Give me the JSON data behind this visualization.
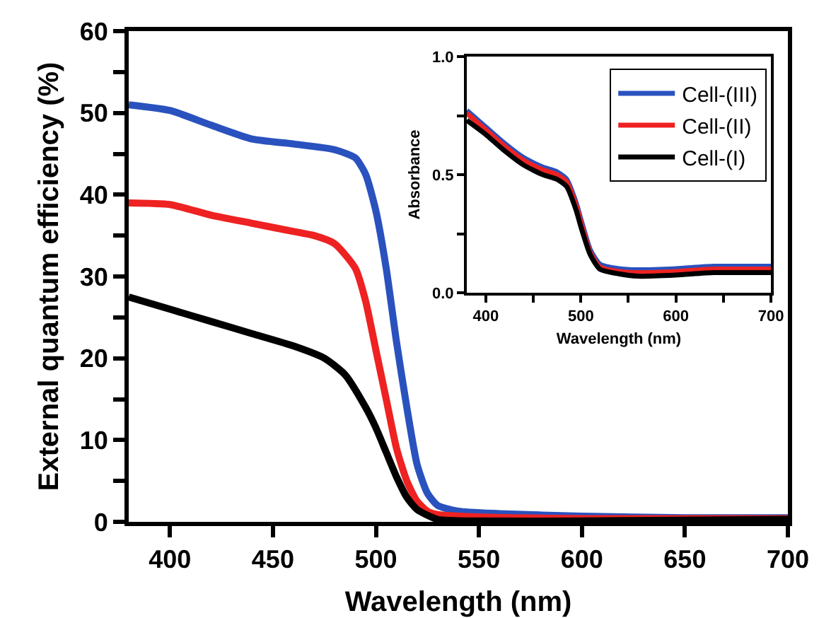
{
  "chart_data": [
    {
      "type": "line",
      "xlabel": "Wavelength (nm)",
      "ylabel": "External quantum efficiency (%)",
      "xlim": [
        380,
        700
      ],
      "ylim": [
        0,
        60
      ],
      "xticks": [
        400,
        450,
        500,
        550,
        600,
        650,
        700
      ],
      "yticks": [
        0,
        {
          "value": 5,
          "label": null
        },
        10,
        {
          "value": 15,
          "label": null
        },
        20,
        {
          "value": 25,
          "label": null
        },
        30,
        {
          "value": 35,
          "label": null
        },
        40,
        {
          "value": 45,
          "label": null
        },
        50,
        {
          "value": 55,
          "label": null
        },
        60
      ],
      "marker": "none",
      "line_style": "solid",
      "series": [
        {
          "color": "#2a52be",
          "x": [
            380,
            400,
            420,
            440,
            460,
            480,
            490,
            495,
            500,
            505,
            510,
            515,
            520,
            525,
            530,
            540,
            560,
            600,
            650,
            700
          ],
          "values": [
            51,
            50.3,
            48.5,
            46.8,
            46.2,
            45.5,
            44.5,
            42.5,
            38,
            31,
            22,
            14,
            7,
            3.5,
            2,
            1.3,
            1,
            0.7,
            0.5,
            0.5
          ]
        },
        {
          "color": "#ee2222",
          "x": [
            380,
            400,
            420,
            440,
            460,
            470,
            480,
            490,
            495,
            500,
            505,
            510,
            515,
            520,
            525,
            530,
            550,
            600,
            650,
            700
          ],
          "values": [
            39,
            38.8,
            37.5,
            36.5,
            35.5,
            35,
            34,
            31,
            27,
            21,
            15,
            9,
            5,
            2.5,
            1.3,
            0.9,
            0.6,
            0.4,
            0.4,
            0.4
          ]
        },
        {
          "color": "#000000",
          "x": [
            380,
            400,
            420,
            440,
            460,
            475,
            485,
            495,
            500,
            505,
            510,
            515,
            520,
            530,
            550,
            600,
            700
          ],
          "values": [
            27.5,
            26,
            24.5,
            23,
            21.5,
            20,
            18,
            14,
            11.5,
            8.5,
            5.5,
            3,
            1.5,
            0.3,
            0.1,
            0.1,
            0.3
          ]
        }
      ]
    },
    {
      "type": "line",
      "xlabel": "Wavelength (nm)",
      "ylabel": "Absorbance",
      "xlim": [
        380,
        700
      ],
      "ylim": [
        0,
        1
      ],
      "xticks": [
        400,
        {
          "value": 450,
          "label": null
        },
        500,
        {
          "value": 550,
          "label": null
        },
        600,
        {
          "value": 650,
          "label": null
        },
        700
      ],
      "yticks": [
        {
          "value": 0,
          "label": "0.0"
        },
        {
          "value": 0.25,
          "label": null
        },
        0.5,
        {
          "value": 0.75,
          "label": null
        },
        {
          "value": 1,
          "label": "1.0"
        }
      ],
      "marker": "none",
      "line_style": "solid",
      "legend": "top right",
      "series": [
        {
          "name": "Cell-(III)",
          "color": "#2a52be",
          "x": [
            380,
            400,
            420,
            440,
            460,
            475,
            485,
            495,
            500,
            510,
            520,
            540,
            560,
            600,
            640,
            700
          ],
          "values": [
            0.772,
            0.702,
            0.632,
            0.572,
            0.532,
            0.512,
            0.482,
            0.382,
            0.312,
            0.182,
            0.122,
            0.102,
            0.097,
            0.102,
            0.112,
            0.112
          ]
        },
        {
          "name": "Cell-(II)",
          "color": "#ee2222",
          "x": [
            380,
            400,
            420,
            440,
            460,
            475,
            485,
            495,
            500,
            510,
            520,
            540,
            560,
            600,
            640,
            700
          ],
          "values": [
            0.76,
            0.69,
            0.62,
            0.56,
            0.52,
            0.5,
            0.47,
            0.37,
            0.3,
            0.17,
            0.11,
            0.09,
            0.085,
            0.09,
            0.1,
            0.1
          ]
        },
        {
          "name": "Cell-(I)",
          "color": "#000000",
          "x": [
            380,
            400,
            420,
            440,
            460,
            475,
            485,
            495,
            500,
            510,
            520,
            540,
            560,
            600,
            640,
            700
          ],
          "values": [
            0.73,
            0.67,
            0.6,
            0.54,
            0.5,
            0.48,
            0.45,
            0.35,
            0.28,
            0.16,
            0.1,
            0.08,
            0.07,
            0.075,
            0.085,
            0.085
          ]
        }
      ]
    }
  ]
}
